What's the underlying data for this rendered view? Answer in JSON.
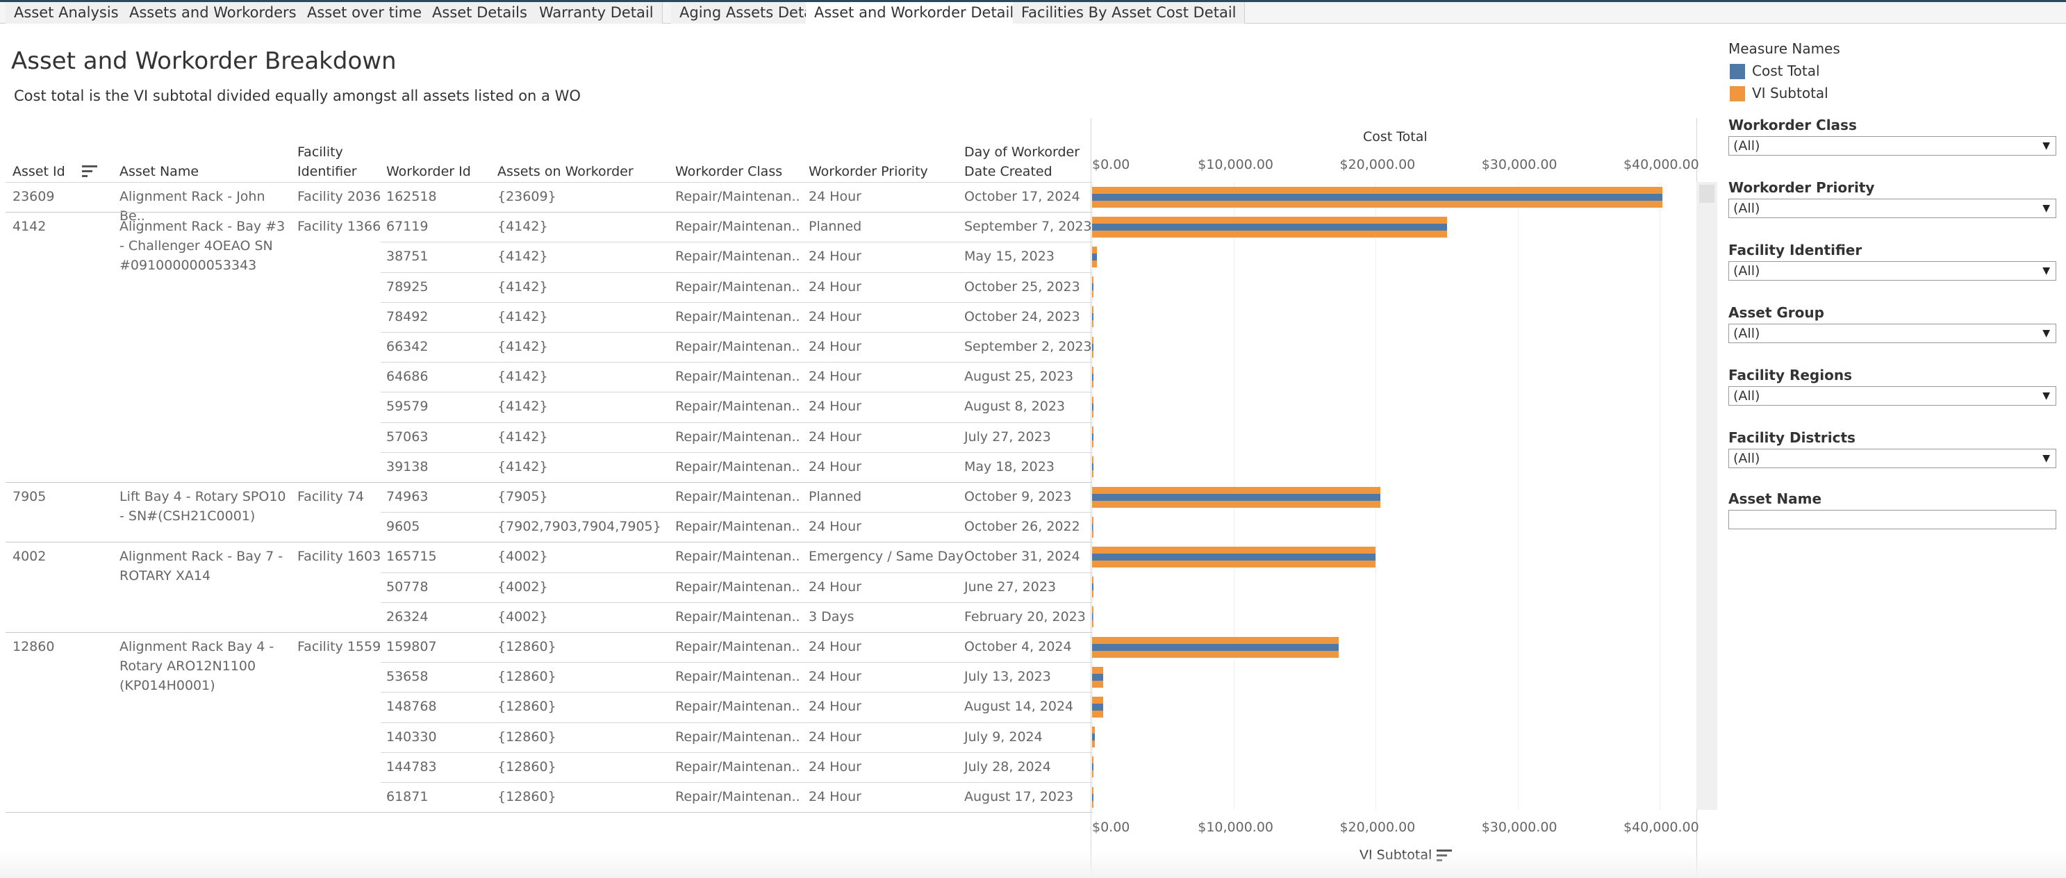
{
  "tabs": [
    "Asset Analysis",
    "Assets and Workorders",
    "Asset over time",
    "Asset Details",
    "Warranty Detail",
    "Aging Assets Detail",
    "Asset and Workorder Detail",
    "Facilities By Asset Cost Detail"
  ],
  "active_tab": 6,
  "title": "Asset and Workorder Breakdown",
  "subtitle": "Cost total is the  VI subtotal divided equally amongst all assets listed on a WO",
  "columns": {
    "asset_id": "Asset Id",
    "asset_name": "Asset Name",
    "facility_id_1": "Facility",
    "facility_id_2": "Identifier",
    "workorder_id": "Workorder Id",
    "assets_on_wo": "Assets on Workorder",
    "wo_class": "Workorder Class",
    "wo_priority": "Workorder Priority",
    "day_created_1": "Day of Workorder",
    "day_created_2": "Date Created"
  },
  "axis": {
    "top_title": "Cost Total",
    "bottom_title": "VI Subtotal",
    "ticks": [
      "$0.00",
      "$10,000.00",
      "$20,000.00",
      "$30,000.00",
      "$40,000.00"
    ]
  },
  "groups": [
    {
      "asset_id": "23609",
      "asset_name": "Alignment Rack - John Be..",
      "facility": "Facility 2036",
      "rows": 1
    },
    {
      "asset_id": "4142",
      "asset_name": "Alignment Rack - Bay #3 - Challenger 4OEAO SN #091000000053343",
      "facility": "Facility 1366",
      "rows": 9
    },
    {
      "asset_id": "7905",
      "asset_name": "Lift Bay 4 - Rotary SPO10 - SN#(CSH21C0001)",
      "facility": "Facility 74",
      "rows": 2
    },
    {
      "asset_id": "4002",
      "asset_name": "Alignment Rack - Bay 7 - ROTARY XA14",
      "facility": "Facility 1603",
      "rows": 3
    },
    {
      "asset_id": "12860",
      "asset_name": "Alignment Rack Bay 4 - Rotary ARO12N1100 (KP014H0001)",
      "facility": "Facility 1559",
      "rows": 6
    }
  ],
  "rows": [
    {
      "wo": "162518",
      "assets": "{23609}",
      "cls": "Repair/Maintenan..",
      "pri": "24 Hour",
      "date": "October 17, 2024"
    },
    {
      "wo": "67119",
      "assets": "{4142}",
      "cls": "Repair/Maintenan..",
      "pri": "Planned",
      "date": "September 7, 2023"
    },
    {
      "wo": "38751",
      "assets": "{4142}",
      "cls": "Repair/Maintenan..",
      "pri": "24 Hour",
      "date": "May 15, 2023"
    },
    {
      "wo": "78925",
      "assets": "{4142}",
      "cls": "Repair/Maintenan..",
      "pri": "24 Hour",
      "date": "October 25, 2023"
    },
    {
      "wo": "78492",
      "assets": "{4142}",
      "cls": "Repair/Maintenan..",
      "pri": "24 Hour",
      "date": "October 24, 2023"
    },
    {
      "wo": "66342",
      "assets": "{4142}",
      "cls": "Repair/Maintenan..",
      "pri": "24 Hour",
      "date": "September 2, 2023"
    },
    {
      "wo": "64686",
      "assets": "{4142}",
      "cls": "Repair/Maintenan..",
      "pri": "24 Hour",
      "date": "August 25, 2023"
    },
    {
      "wo": "59579",
      "assets": "{4142}",
      "cls": "Repair/Maintenan..",
      "pri": "24 Hour",
      "date": "August 8, 2023"
    },
    {
      "wo": "57063",
      "assets": "{4142}",
      "cls": "Repair/Maintenan..",
      "pri": "24 Hour",
      "date": "July 27, 2023"
    },
    {
      "wo": "39138",
      "assets": "{4142}",
      "cls": "Repair/Maintenan..",
      "pri": "24 Hour",
      "date": "May 18, 2023"
    },
    {
      "wo": "74963",
      "assets": "{7905}",
      "cls": "Repair/Maintenan..",
      "pri": "Planned",
      "date": "October 9, 2023"
    },
    {
      "wo": "9605",
      "assets": "{7902,7903,7904,7905}",
      "cls": "Repair/Maintenan..",
      "pri": "24 Hour",
      "date": "October 26, 2022"
    },
    {
      "wo": "165715",
      "assets": "{4002}",
      "cls": "Repair/Maintenan..",
      "pri": "Emergency / Same Day",
      "date": "October 31, 2024"
    },
    {
      "wo": "50778",
      "assets": "{4002}",
      "cls": "Repair/Maintenan..",
      "pri": "24 Hour",
      "date": "June 27, 2023"
    },
    {
      "wo": "26324",
      "assets": "{4002}",
      "cls": "Repair/Maintenan..",
      "pri": "3 Days",
      "date": "February 20, 2023"
    },
    {
      "wo": "159807",
      "assets": "{12860}",
      "cls": "Repair/Maintenan..",
      "pri": "24 Hour",
      "date": "October 4, 2024"
    },
    {
      "wo": "53658",
      "assets": "{12860}",
      "cls": "Repair/Maintenan..",
      "pri": "24 Hour",
      "date": "July 13, 2023"
    },
    {
      "wo": "148768",
      "assets": "{12860}",
      "cls": "Repair/Maintenan..",
      "pri": "24 Hour",
      "date": "August 14, 2024"
    },
    {
      "wo": "140330",
      "assets": "{12860}",
      "cls": "Repair/Maintenan..",
      "pri": "24 Hour",
      "date": "July 9, 2024"
    },
    {
      "wo": "144783",
      "assets": "{12860}",
      "cls": "Repair/Maintenan..",
      "pri": "24 Hour",
      "date": "July 28, 2024"
    },
    {
      "wo": "61871",
      "assets": "{12860}",
      "cls": "Repair/Maintenan..",
      "pri": "24 Hour",
      "date": "August 17, 2023"
    }
  ],
  "chart_data": {
    "type": "bar",
    "orientation": "horizontal",
    "categories": [
      "162518",
      "67119",
      "38751",
      "78925",
      "78492",
      "66342",
      "64686",
      "59579",
      "57063",
      "39138",
      "74963",
      "9605",
      "165715",
      "50778",
      "26324",
      "159807",
      "53658",
      "148768",
      "140330",
      "144783",
      "61871"
    ],
    "xlim": [
      0,
      42500
    ],
    "series": [
      {
        "name": "VI Subtotal",
        "color": "#f0963f",
        "values": [
          40200,
          25000,
          350,
          100,
          100,
          100,
          100,
          100,
          100,
          100,
          20300,
          50,
          20000,
          80,
          50,
          17400,
          800,
          800,
          200,
          80,
          80
        ]
      },
      {
        "name": "Cost Total",
        "color": "#4e79a7",
        "values": [
          40200,
          25000,
          350,
          100,
          100,
          100,
          100,
          100,
          100,
          100,
          20300,
          12,
          20000,
          80,
          50,
          17400,
          800,
          800,
          200,
          80,
          80
        ]
      }
    ]
  },
  "legend": {
    "title": "Measure Names",
    "items": [
      {
        "label": "Cost Total",
        "color": "#4e79a7"
      },
      {
        "label": "VI Subtotal",
        "color": "#f0963f"
      }
    ]
  },
  "filters": [
    {
      "label": "Workorder Class",
      "value": "(All)"
    },
    {
      "label": "Workorder Priority",
      "value": "(All)"
    },
    {
      "label": "Facility Identifier",
      "value": "(All)"
    },
    {
      "label": "Asset Group",
      "value": "(All)"
    },
    {
      "label": "Facility Regions",
      "value": "(All)"
    },
    {
      "label": "Facility Districts",
      "value": "(All)"
    }
  ],
  "asset_name_filter": {
    "label": "Asset Name",
    "value": ""
  }
}
